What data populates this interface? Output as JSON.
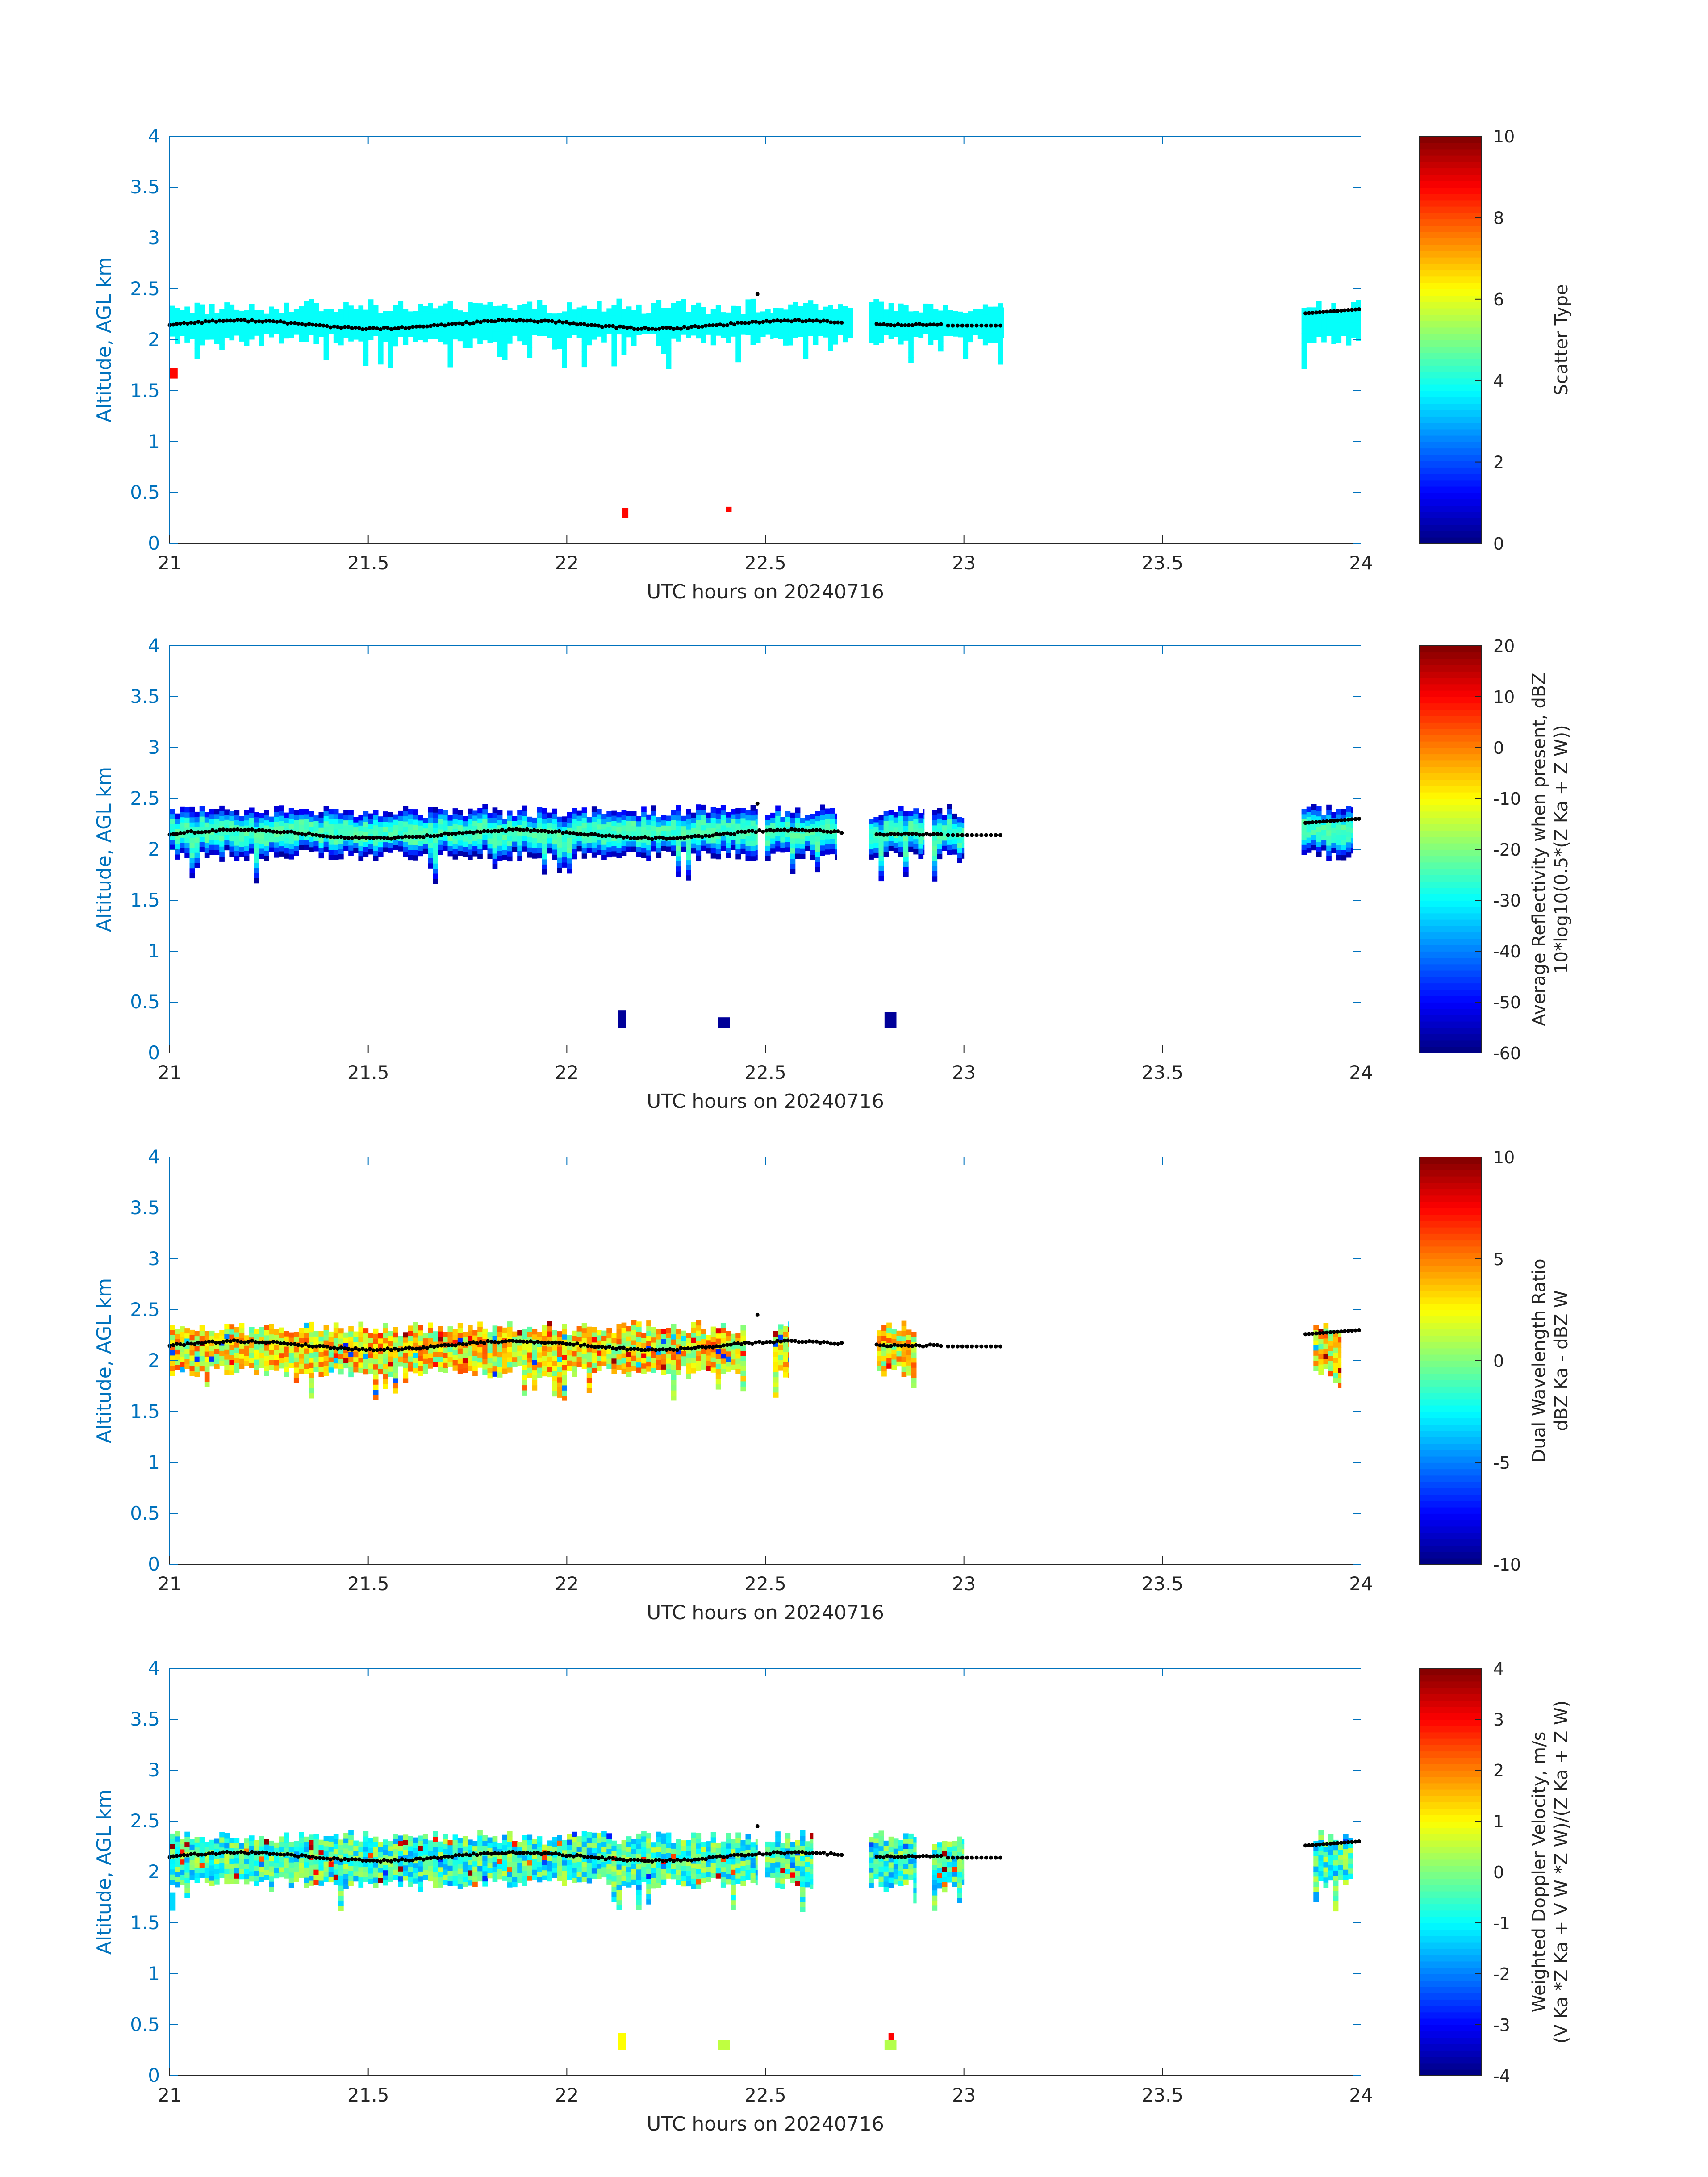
{
  "figure": {
    "xlabel": "UTC hours on 20240716",
    "ylabel": "Altitude, AGL km",
    "axis_color": "#0072bd",
    "text_color": "#262626"
  },
  "chart_data": [
    {
      "type": "heatmap",
      "id": "scatter-type",
      "xlim": [
        21,
        24
      ],
      "ylim": [
        0,
        4
      ],
      "xticks": [
        "21",
        "21.5",
        "22",
        "22.5",
        "23",
        "23.5",
        "24"
      ],
      "yticks": [
        "0",
        "0.5",
        "1",
        "1.5",
        "2",
        "2.5",
        "3",
        "3.5",
        "4"
      ],
      "xlabel": "UTC hours on 20240716",
      "ylabel": "Altitude, AGL km",
      "colormap": "jet",
      "clim": [
        0,
        10
      ],
      "cticks": [
        "0",
        "2",
        "4",
        "6",
        "8",
        "10"
      ],
      "clabel": [
        "Scatter Type"
      ],
      "fill_value": 3.8,
      "secondary_fill": 8.7,
      "layer_segments": [
        [
          21.0,
          22.52
        ],
        [
          22.52,
          22.72
        ],
        [
          22.76,
          23.1
        ],
        [
          23.85,
          24.0
        ]
      ],
      "layer_base_km": 2.06,
      "layer_top_km": 2.3,
      "patches": [
        {
          "x0": 21.0,
          "x1": 21.02,
          "y0": 1.62,
          "y1": 1.72,
          "c": 8.7
        },
        {
          "x0": 22.14,
          "x1": 22.155,
          "y0": 0.25,
          "y1": 0.35,
          "c": 8.7
        },
        {
          "x0": 22.4,
          "x1": 22.415,
          "y0": 0.31,
          "y1": 0.36,
          "c": 8.7
        }
      ],
      "cloud_top_dots": true
    },
    {
      "type": "heatmap",
      "id": "reflectivity",
      "xlim": [
        21,
        24
      ],
      "ylim": [
        0,
        4
      ],
      "xticks": [
        "21",
        "21.5",
        "22",
        "22.5",
        "23",
        "23.5",
        "24"
      ],
      "yticks": [
        "0",
        "0.5",
        "1",
        "1.5",
        "2",
        "2.5",
        "3",
        "3.5",
        "4"
      ],
      "xlabel": "UTC hours on 20240716",
      "ylabel": "Altitude, AGL km",
      "colormap": "jet",
      "clim": [
        -60,
        20
      ],
      "cticks": [
        "-60",
        "-50",
        "-40",
        "-30",
        "-20",
        "-10",
        "0",
        "10",
        "20"
      ],
      "clabel": [
        "Average Reflectivity when present, dBZ",
        "10*log10(0.5*(Z Ka + Z W))"
      ],
      "layer_segments": [
        [
          21.0,
          22.48
        ],
        [
          22.5,
          22.68
        ],
        [
          22.76,
          22.9
        ],
        [
          22.92,
          23.0
        ],
        [
          23.85,
          23.98
        ]
      ],
      "layer_base_km": 2.0,
      "layer_top_km": 2.35,
      "value_range": [
        -55,
        -25
      ],
      "patches": [
        {
          "x0": 22.13,
          "x1": 22.15,
          "y0": 0.25,
          "y1": 0.42,
          "c": -58
        },
        {
          "x0": 22.38,
          "x1": 22.41,
          "y0": 0.25,
          "y1": 0.35,
          "c": -58
        },
        {
          "x0": 22.8,
          "x1": 22.83,
          "y0": 0.25,
          "y1": 0.4,
          "c": -58
        }
      ],
      "cloud_top_dots": true
    },
    {
      "type": "heatmap",
      "id": "dual-wavelength-ratio",
      "xlim": [
        21,
        24
      ],
      "ylim": [
        0,
        4
      ],
      "xticks": [
        "21",
        "21.5",
        "22",
        "22.5",
        "23",
        "23.5",
        "24"
      ],
      "yticks": [
        "0",
        "0.5",
        "1",
        "1.5",
        "2",
        "2.5",
        "3",
        "3.5",
        "4"
      ],
      "xlabel": "UTC hours on 20240716",
      "ylabel": "Altitude, AGL km",
      "colormap": "jet",
      "clim": [
        -10,
        10
      ],
      "cticks": [
        "-10",
        "-5",
        "0",
        "5",
        "10"
      ],
      "clabel": [
        "Dual Wavelength Ratio",
        "dBZ Ka - dBZ W"
      ],
      "layer_segments": [
        [
          21.0,
          22.45
        ],
        [
          22.52,
          22.56
        ],
        [
          22.78,
          22.88
        ],
        [
          23.88,
          23.95
        ]
      ],
      "layer_base_km": 1.95,
      "layer_top_km": 2.3,
      "value_range": [
        -1,
        6
      ],
      "patches": [],
      "cloud_top_dots": true
    },
    {
      "type": "heatmap",
      "id": "doppler-velocity",
      "xlim": [
        21,
        24
      ],
      "ylim": [
        0,
        4
      ],
      "xticks": [
        "21",
        "21.5",
        "22",
        "22.5",
        "23",
        "23.5",
        "24"
      ],
      "yticks": [
        "0",
        "0.5",
        "1",
        "1.5",
        "2",
        "2.5",
        "3",
        "3.5",
        "4"
      ],
      "xlabel": "UTC hours on 20240716",
      "ylabel": "Altitude, AGL km",
      "colormap": "jet",
      "clim": [
        -4,
        4
      ],
      "cticks": [
        "-4",
        "-3",
        "-2",
        "-1",
        "0",
        "1",
        "2",
        "3",
        "4"
      ],
      "clabel": [
        "Weighted Doppler Velocity, m/s",
        "(V Ka *Z Ka + V W *Z W)/(Z Ka + Z W)"
      ],
      "layer_segments": [
        [
          21.0,
          22.48
        ],
        [
          22.5,
          22.62
        ],
        [
          22.76,
          22.88
        ],
        [
          22.92,
          23.0
        ],
        [
          23.88,
          23.98
        ]
      ],
      "layer_base_km": 1.95,
      "layer_top_km": 2.32,
      "value_range": [
        -1.8,
        0.6
      ],
      "patches": [
        {
          "x0": 21.0,
          "x1": 21.015,
          "y0": 1.62,
          "y1": 1.8,
          "c": -1.3
        },
        {
          "x0": 22.13,
          "x1": 22.15,
          "y0": 0.25,
          "y1": 0.42,
          "c": 1.0
        },
        {
          "x0": 22.38,
          "x1": 22.41,
          "y0": 0.25,
          "y1": 0.35,
          "c": 0.5
        },
        {
          "x0": 22.8,
          "x1": 22.83,
          "y0": 0.25,
          "y1": 0.35,
          "c": 0.4
        },
        {
          "x0": 22.81,
          "x1": 22.825,
          "y0": 0.35,
          "y1": 0.42,
          "c": 3.0
        }
      ],
      "cloud_top_dots": true
    }
  ]
}
